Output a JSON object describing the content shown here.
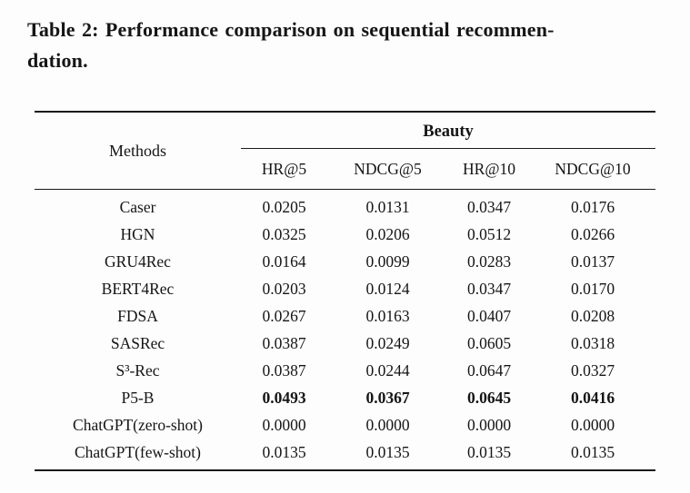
{
  "caption": {
    "full": "Table 2: Performance comparison on sequential recommendation.",
    "lines": [
      "Table 2: Performance comparison on sequential recommen-",
      "dation."
    ]
  },
  "table": {
    "methods_header": "Methods",
    "group_header": "Beauty",
    "columns": [
      "HR@5",
      "NDCG@5",
      "HR@10",
      "NDCG@10"
    ],
    "rows": [
      {
        "method": "Caser",
        "values": [
          "0.0205",
          "0.0131",
          "0.0347",
          "0.0176"
        ],
        "values_bold": false
      },
      {
        "method": "HGN",
        "values": [
          "0.0325",
          "0.0206",
          "0.0512",
          "0.0266"
        ],
        "values_bold": false
      },
      {
        "method": "GRU4Rec",
        "values": [
          "0.0164",
          "0.0099",
          "0.0283",
          "0.0137"
        ],
        "values_bold": false
      },
      {
        "method": "BERT4Rec",
        "values": [
          "0.0203",
          "0.0124",
          "0.0347",
          "0.0170"
        ],
        "values_bold": false
      },
      {
        "method": "FDSA",
        "values": [
          "0.0267",
          "0.0163",
          "0.0407",
          "0.0208"
        ],
        "values_bold": false
      },
      {
        "method": "SASRec",
        "values": [
          "0.0387",
          "0.0249",
          "0.0605",
          "0.0318"
        ],
        "values_bold": false
      },
      {
        "method": "S³-Rec",
        "values": [
          "0.0387",
          "0.0244",
          "0.0647",
          "0.0327"
        ],
        "values_bold": false
      },
      {
        "method": "P5-B",
        "values": [
          "0.0493",
          "0.0367",
          "0.0645",
          "0.0416"
        ],
        "values_bold": true
      },
      {
        "method": "ChatGPT(zero-shot)",
        "values": [
          "0.0000",
          "0.0000",
          "0.0000",
          "0.0000"
        ],
        "values_bold": false
      },
      {
        "method": "ChatGPT(few-shot)",
        "values": [
          "0.0135",
          "0.0135",
          "0.0135",
          "0.0135"
        ],
        "values_bold": false
      }
    ]
  },
  "colors": {
    "background": "#fdfdfd",
    "text": "#151515",
    "rule": "#1a1a1a"
  }
}
